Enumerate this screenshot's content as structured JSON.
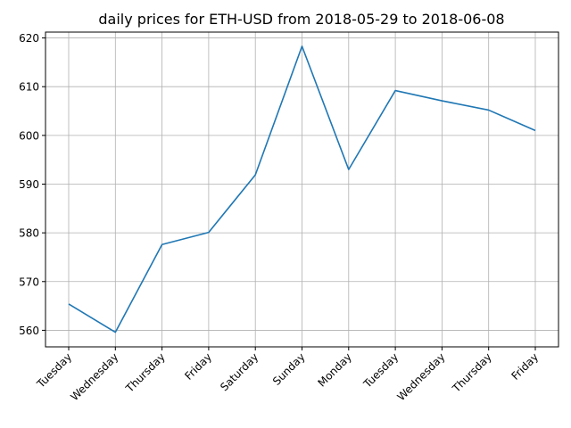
{
  "chart_data": {
    "type": "line",
    "title": "daily prices for ETH-USD from 2018-05-29 to 2018-06-08",
    "xlabel": "",
    "ylabel": "",
    "categories": [
      "Tuesday",
      "Wednesday",
      "Thursday",
      "Friday",
      "Saturday",
      "Sunday",
      "Monday",
      "Tuesday",
      "Wednesday",
      "Thursday",
      "Friday"
    ],
    "series": [
      {
        "values": [
          565.4,
          559.6,
          577.6,
          580.1,
          591.9,
          618.3,
          593.0,
          609.2,
          607.1,
          605.2,
          601.0
        ]
      }
    ],
    "ylim": [
      556.6,
      621.2
    ],
    "yticks": [
      560,
      570,
      580,
      590,
      600,
      610,
      620
    ],
    "grid": true,
    "colors": {
      "line": "#1f77b4",
      "grid": "#b0b0b0",
      "axis": "#000000"
    }
  }
}
